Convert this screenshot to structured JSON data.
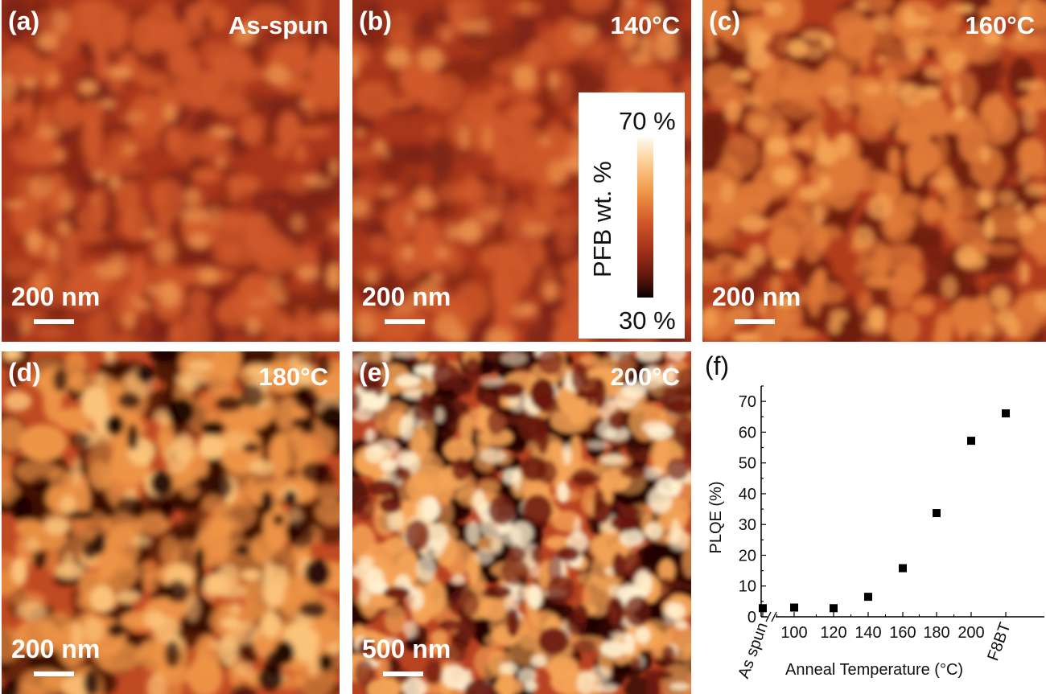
{
  "panels": [
    {
      "id": "a",
      "label": "(a)",
      "title": "As-spun",
      "scalebar": "200 nm",
      "contrast": "low"
    },
    {
      "id": "b",
      "label": "(b)",
      "title": "140°C",
      "scalebar": "200 nm",
      "contrast": "low"
    },
    {
      "id": "c",
      "label": "(c)",
      "title": "160°C",
      "scalebar": "200 nm",
      "contrast": "medium"
    },
    {
      "id": "d",
      "label": "(d)",
      "title": "180°C",
      "scalebar": "200 nm",
      "contrast": "high"
    },
    {
      "id": "e",
      "label": "(e)",
      "title": "200°C",
      "scalebar": "500 nm",
      "contrast": "very-high"
    }
  ],
  "colorbar": {
    "label": "PFB wt. %",
    "max": "70 %",
    "min": "30 %",
    "colors": [
      "#080202",
      "#5a150c",
      "#9d2e19",
      "#d25627",
      "#f19a4a",
      "#fdd29b",
      "#fffaf0"
    ]
  },
  "chart_data": {
    "type": "scatter",
    "panel_label": "(f)",
    "title": "",
    "xlabel": "Anneal Temperature (°C)",
    "ylabel": "PLQE (%)",
    "ylim": [
      0,
      75
    ],
    "yticks": [
      0,
      10,
      20,
      30,
      40,
      50,
      60,
      70
    ],
    "categories": [
      "As spun",
      "100",
      "120",
      "140",
      "160",
      "180",
      "200",
      "F8BT"
    ],
    "axis_break_between": [
      "As spun",
      "100"
    ],
    "values": [
      2.8,
      3.0,
      2.8,
      6.5,
      15.8,
      33.7,
      57.2,
      66.1
    ],
    "marker_color": "#000000"
  }
}
